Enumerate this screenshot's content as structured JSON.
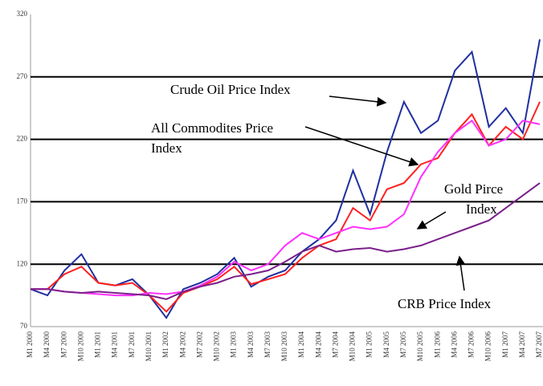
{
  "chart_data": {
    "type": "line",
    "categories": [
      "M1 2000",
      "M4 2000",
      "M7 2000",
      "M10 2000",
      "M1 2001",
      "M4 2001",
      "M7 2001",
      "M10 2001",
      "M1 2002",
      "M4 2002",
      "M7 2002",
      "M10 2002",
      "M1 2003",
      "M4 2003",
      "M7 2003",
      "M10 2003",
      "M1 2004",
      "M4 2004",
      "M7 2004",
      "M10 2004",
      "M1 2005",
      "M4 2005",
      "M7 2005",
      "M10 2005",
      "M1 2006",
      "M4 2006",
      "M7 2006",
      "M10 2006",
      "M1 2007",
      "M4 2007",
      "M7 2007"
    ],
    "series": [
      {
        "color": "#1f2f9f",
        "values": [
          100,
          95,
          115,
          128,
          105,
          103,
          108,
          95,
          77,
          100,
          105,
          112,
          125,
          102,
          110,
          115,
          130,
          140,
          155,
          195,
          160,
          210,
          250,
          225,
          235,
          275,
          290,
          230,
          245,
          225,
          300
        ]
      },
      {
        "color": "#ff2020",
        "values": [
          100,
          100,
          112,
          118,
          105,
          103,
          105,
          95,
          82,
          97,
          102,
          108,
          118,
          104,
          108,
          112,
          125,
          135,
          140,
          165,
          155,
          180,
          185,
          200,
          205,
          225,
          240,
          215,
          230,
          220,
          250
        ]
      },
      {
        "color": "#ff30ff",
        "values": [
          100,
          100,
          98,
          97,
          96,
          95,
          95,
          97,
          96,
          98,
          103,
          110,
          122,
          115,
          120,
          135,
          145,
          140,
          145,
          150,
          148,
          150,
          160,
          190,
          210,
          225,
          235,
          215,
          220,
          235,
          232
        ]
      },
      {
        "color": "#7a1f8a",
        "values": [
          100,
          100,
          98,
          97,
          98,
          97,
          96,
          95,
          92,
          98,
          102,
          105,
          110,
          112,
          115,
          122,
          130,
          135,
          130,
          132,
          133,
          130,
          132,
          135,
          140,
          145,
          150,
          155,
          165,
          175,
          185
        ]
      }
    ],
    "annotations": [
      {
        "lines": [
          "Crude Oil Price Index"
        ]
      },
      {
        "lines": [
          "All Commodites Price",
          "Index"
        ]
      },
      {
        "lines": [
          "Gold Pirce",
          "Index"
        ]
      },
      {
        "lines": [
          "CRB Price Index"
        ]
      }
    ],
    "ylim": [
      70,
      320
    ],
    "yticks": [
      70,
      120,
      170,
      220,
      270,
      320
    ],
    "grid": true
  }
}
